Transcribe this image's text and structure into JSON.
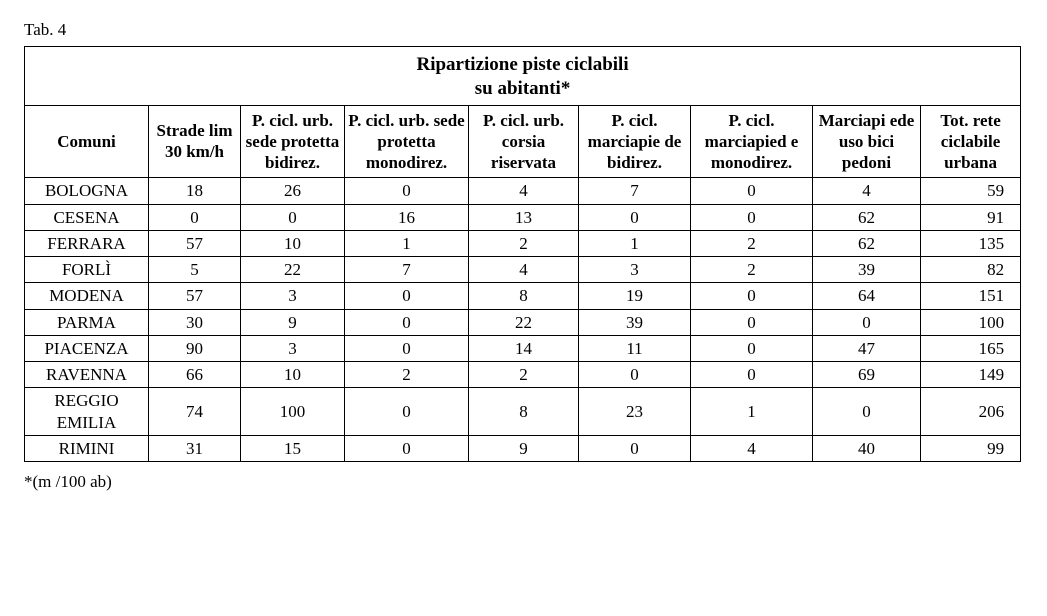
{
  "caption": "Tab. 4",
  "title_line1": "Ripartizione piste ciclabili",
  "title_line2": "su abitanti*",
  "footnote": "*(m /100 ab)",
  "columns": [
    "Comuni",
    "Strade lim 30 km/h",
    "P. cicl. urb. sede protetta bidirez.",
    "P. cicl. urb. sede protetta monodirez.",
    "P. cicl. urb. corsia riservata",
    "P. cicl. marciapie de bidirez.",
    "P. cicl. marciapied e monodirez.",
    "Marciapi ede uso bici pedoni",
    "Tot. rete ciclabile urbana"
  ],
  "rows": [
    {
      "comune": "BOLOGNA",
      "v": [
        18,
        26,
        0,
        4,
        7,
        0,
        4,
        59
      ]
    },
    {
      "comune": "CESENA",
      "v": [
        0,
        0,
        16,
        13,
        0,
        0,
        62,
        91
      ]
    },
    {
      "comune": "FERRARA",
      "v": [
        57,
        10,
        1,
        2,
        1,
        2,
        62,
        135
      ]
    },
    {
      "comune": "FORLÌ",
      "v": [
        5,
        22,
        7,
        4,
        3,
        2,
        39,
        82
      ]
    },
    {
      "comune": "MODENA",
      "v": [
        57,
        3,
        0,
        8,
        19,
        0,
        64,
        151
      ]
    },
    {
      "comune": "PARMA",
      "v": [
        30,
        9,
        0,
        22,
        39,
        0,
        0,
        100
      ]
    },
    {
      "comune": "PIACENZA",
      "v": [
        90,
        3,
        0,
        14,
        11,
        0,
        47,
        165
      ]
    },
    {
      "comune": "RAVENNA",
      "v": [
        66,
        10,
        2,
        2,
        0,
        0,
        69,
        149
      ]
    },
    {
      "comune": "REGGIO EMILIA",
      "v": [
        74,
        100,
        0,
        8,
        23,
        1,
        0,
        206
      ]
    },
    {
      "comune": "RIMINI",
      "v": [
        31,
        15,
        0,
        9,
        0,
        4,
        40,
        99
      ]
    }
  ],
  "style": {
    "font_family": "Times New Roman",
    "title_fontsize_pt": 14,
    "header_fontsize_pt": 13,
    "body_fontsize_pt": 13,
    "border_color": "#000000",
    "background_color": "#ffffff",
    "text_color": "#000000",
    "last_col_align": "right",
    "other_cols_align": "center"
  }
}
